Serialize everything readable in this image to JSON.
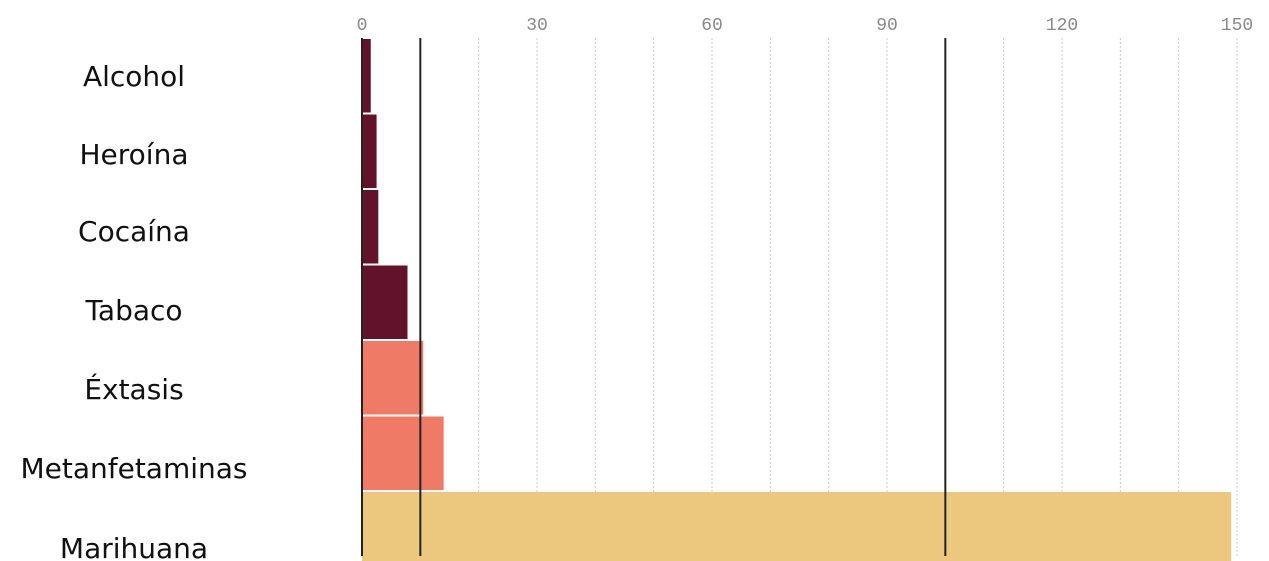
{
  "chart_data": {
    "type": "bar",
    "orientation": "horizontal",
    "categories": [
      "Alcohol",
      "Heroína",
      "Cocaína",
      "Tabaco",
      "Éxtasis",
      "Metanfetaminas",
      "Marihuana"
    ],
    "values": [
      1.5,
      2.5,
      2.8,
      7.8,
      10.5,
      14,
      149
    ],
    "bar_colors": [
      "#62122a",
      "#62122a",
      "#62122a",
      "#62122a",
      "#ef7b66",
      "#ef7b66",
      "#ecc77e"
    ],
    "xticks": [
      0,
      30,
      60,
      90,
      120,
      150
    ],
    "xlim": [
      0,
      150
    ],
    "ref_lines": [
      10,
      100
    ],
    "grid": true,
    "grid_color": "#c8c8c8",
    "ref_line_color": "#222222",
    "axis_color": "#222222",
    "title": "",
    "xlabel": "",
    "ylabel": ""
  }
}
